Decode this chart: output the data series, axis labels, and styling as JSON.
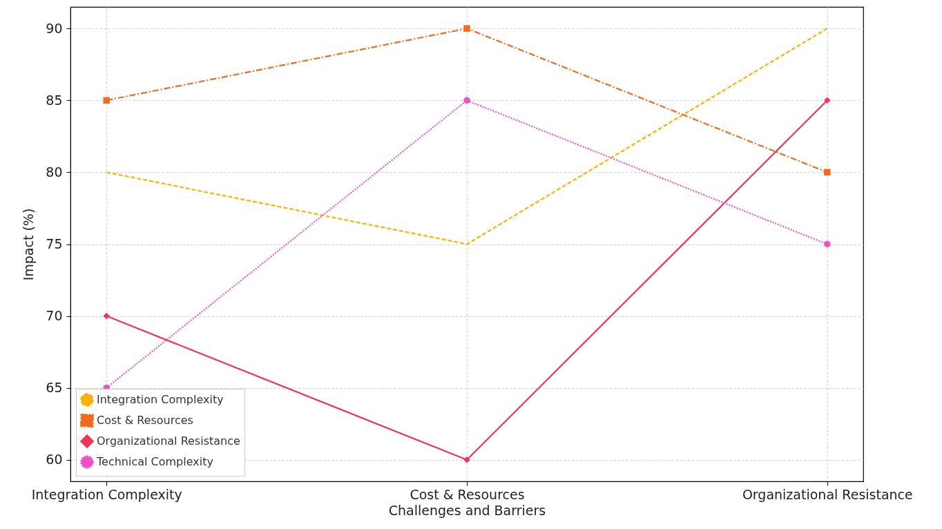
{
  "chart_data": {
    "type": "line",
    "xlabel": "Challenges and Barriers",
    "ylabel": "Impact (%)",
    "categories": [
      "Integration Complexity",
      "Cost & Resources",
      "Organizational Resistance"
    ],
    "series": [
      {
        "name": "Integration Complexity",
        "color": "#ffb000",
        "values": [
          80,
          75,
          90
        ],
        "marker": "none",
        "line_style": "dashed"
      },
      {
        "name": "Cost & Resources",
        "color": "#f26b1d",
        "values": [
          85,
          90,
          80
        ],
        "marker": "square",
        "line_style": "dashdot"
      },
      {
        "name": "Organizational Resistance",
        "color": "#f23459",
        "values": [
          70,
          60,
          85
        ],
        "marker": "diamond",
        "line_style": "solid"
      },
      {
        "name": "Technical Complexity",
        "color": "#f050c8",
        "values": [
          65,
          85,
          75
        ],
        "marker": "circle",
        "line_style": "dotted"
      }
    ],
    "ylim": [
      58.5,
      91.5
    ],
    "yticks": [
      60,
      65,
      70,
      75,
      80,
      85,
      90
    ],
    "grid": true,
    "legend": "bottom left"
  }
}
